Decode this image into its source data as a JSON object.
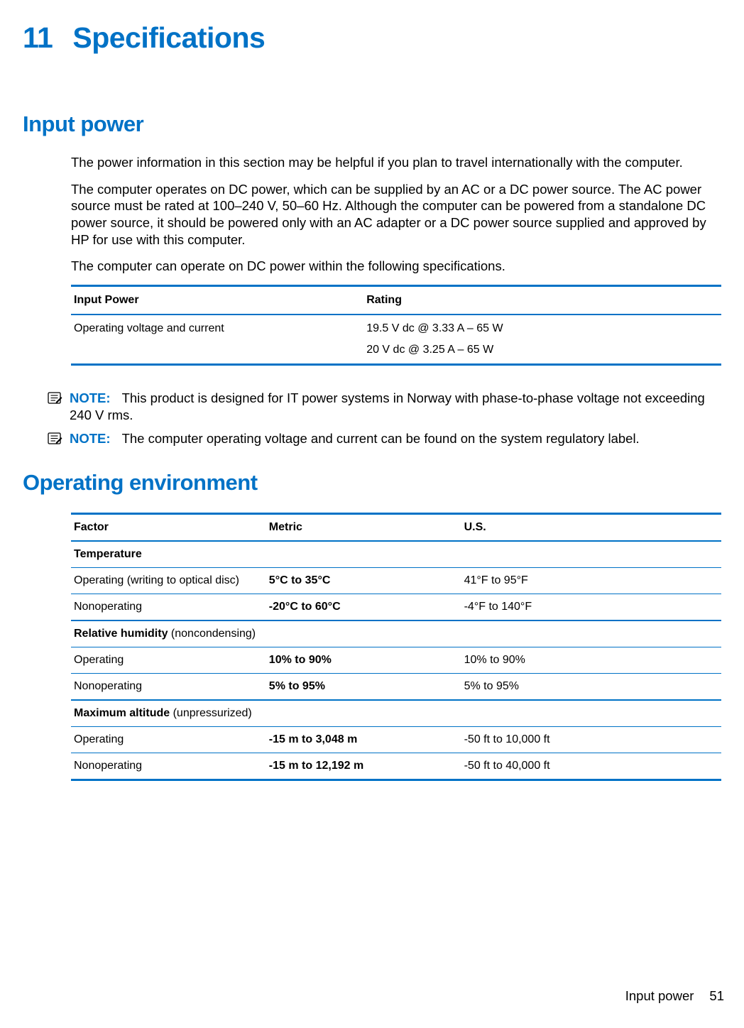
{
  "colors": {
    "accent": "#0072c6",
    "text": "#000000",
    "background": "#ffffff"
  },
  "chapter": {
    "number": "11",
    "title": "Specifications"
  },
  "input_power": {
    "heading": "Input power",
    "para1": "The power information in this section may be helpful if you plan to travel internationally with the computer.",
    "para2": "The computer operates on DC power, which can be supplied by an AC or a DC power source. The AC power source must be rated at 100–240 V, 50–60 Hz. Although the computer can be powered from a standalone DC power source, it should be powered only with an AC adapter or a DC power source supplied and approved by HP for use with this computer.",
    "para3": "The computer can operate on DC power within the following specifications.",
    "table": {
      "columns": [
        "Input Power",
        "Rating"
      ],
      "col_widths": [
        "45%",
        "55%"
      ],
      "rows": [
        {
          "label": "Operating voltage and current",
          "ratings": [
            "19.5 V dc @ 3.33 A – 65 W",
            "20 V dc @ 3.25 A – 65 W"
          ]
        }
      ]
    }
  },
  "notes": {
    "label": "NOTE:",
    "note1": "This product is designed for IT power systems in Norway with phase-to-phase voltage not exceeding 240 V rms.",
    "note2": "The computer operating voltage and current can be found on the system regulatory label."
  },
  "operating_env": {
    "heading": "Operating environment",
    "table": {
      "columns": [
        "Factor",
        "Metric",
        "U.S."
      ],
      "col_widths": [
        "30%",
        "30%",
        "40%"
      ],
      "sections": [
        {
          "header_bold": "Temperature",
          "header_light": "",
          "rows": [
            {
              "factor": "Operating (writing to optical disc)",
              "metric": "5°C to 35°C",
              "us": "41°F to 95°F"
            },
            {
              "factor": "Nonoperating",
              "metric": "-20°C to 60°C",
              "us": "-4°F to 140°F"
            }
          ]
        },
        {
          "header_bold": "Relative humidity",
          "header_light": " (noncondensing)",
          "rows": [
            {
              "factor": "Operating",
              "metric": "10% to 90%",
              "us": "10% to 90%"
            },
            {
              "factor": "Nonoperating",
              "metric": "5% to 95%",
              "us": "5% to 95%"
            }
          ]
        },
        {
          "header_bold": "Maximum altitude",
          "header_light": " (unpressurized)",
          "rows": [
            {
              "factor": "Operating",
              "metric": "-15 m to 3,048 m",
              "us": "-50 ft to 10,000 ft"
            },
            {
              "factor": "Nonoperating",
              "metric": "-15 m to 12,192 m",
              "us": "-50 ft to 40,000 ft"
            }
          ]
        }
      ]
    }
  },
  "footer": {
    "section": "Input power",
    "page": "51"
  }
}
